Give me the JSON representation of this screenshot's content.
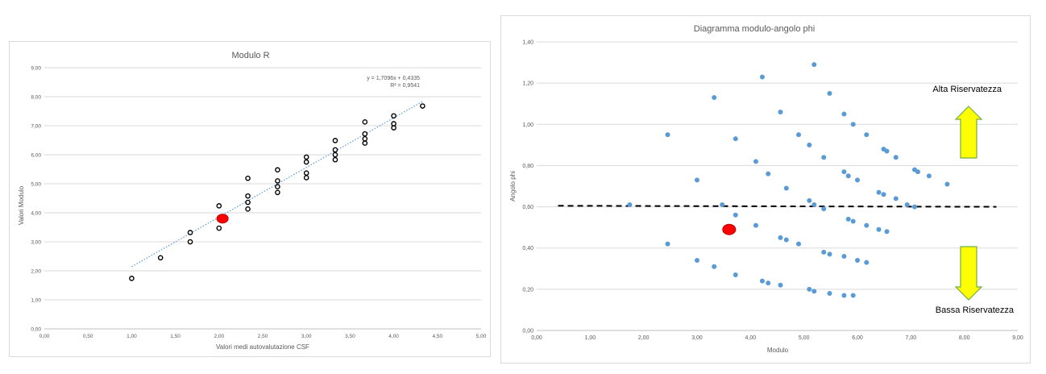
{
  "chart_data": [
    {
      "type": "scatter",
      "title": "Modulo R",
      "xlabel": "Valori medi autovalutazione CSF",
      "ylabel": "Valori Modulo",
      "xlim": [
        0,
        5
      ],
      "ylim": [
        0,
        9
      ],
      "x_ticks": [
        "0,00",
        "0,50",
        "1,00",
        "1,50",
        "2,00",
        "2,50",
        "3,00",
        "3,50",
        "4,00",
        "4,50",
        "5,00"
      ],
      "y_ticks": [
        "0,00",
        "1,00",
        "2,00",
        "3,00",
        "4,00",
        "5,00",
        "6,00",
        "7,00",
        "8,00",
        "9,00"
      ],
      "grid": "horizontal",
      "series": [
        {
          "marker_color": "#000000",
          "points": [
            [
              1.0,
              1.74
            ],
            [
              1.33,
              2.45
            ],
            [
              1.67,
              3.0
            ],
            [
              1.67,
              3.32
            ],
            [
              2.0,
              3.47
            ],
            [
              2.0,
              4.24
            ],
            [
              2.33,
              4.13
            ],
            [
              2.33,
              4.36
            ],
            [
              2.33,
              4.58
            ],
            [
              2.33,
              5.19
            ],
            [
              2.67,
              4.7
            ],
            [
              2.67,
              4.9
            ],
            [
              2.67,
              5.1
            ],
            [
              2.67,
              5.48
            ],
            [
              3.0,
              5.21
            ],
            [
              3.0,
              5.37
            ],
            [
              3.0,
              5.75
            ],
            [
              3.0,
              5.92
            ],
            [
              3.33,
              5.83
            ],
            [
              3.33,
              6.0
            ],
            [
              3.33,
              6.17
            ],
            [
              3.33,
              6.49
            ],
            [
              3.67,
              6.4
            ],
            [
              3.67,
              6.55
            ],
            [
              3.67,
              6.72
            ],
            [
              3.67,
              7.13
            ],
            [
              4.0,
              6.93
            ],
            [
              4.0,
              7.07
            ],
            [
              4.0,
              7.34
            ],
            [
              4.33,
              7.68
            ]
          ]
        }
      ],
      "highlight": {
        "point": [
          2.04,
          3.8
        ],
        "color": "#ff0000"
      },
      "trendline": {
        "equation": "y = 1,7096x + 0,4335",
        "r2": "R² = 0,9541",
        "slope": 1.7096,
        "intercept": 0.4335,
        "x_range": [
          1.0,
          4.33
        ],
        "color": "#5b9bd5"
      }
    },
    {
      "type": "scatter",
      "title": "Diagramma modulo-angolo phi",
      "xlabel": "Modulo",
      "ylabel": "Angolo phi",
      "xlim": [
        0,
        9
      ],
      "ylim": [
        0,
        1.4
      ],
      "x_ticks": [
        "0,00",
        "1,00",
        "2,00",
        "3,00",
        "4,00",
        "5,00",
        "6,00",
        "7,00",
        "8,00",
        "9,00"
      ],
      "y_ticks": [
        "0,00",
        "0,20",
        "0,40",
        "0,60",
        "0,80",
        "1,00",
        "1,20",
        "1,40"
      ],
      "grid": "horizontal",
      "series": [
        {
          "marker_color": "#5b9bd5",
          "points": [
            [
              1.74,
              0.61
            ],
            [
              2.45,
              0.95
            ],
            [
              2.45,
              0.42
            ],
            [
              3.0,
              0.73
            ],
            [
              3.0,
              0.34
            ],
            [
              3.32,
              1.13
            ],
            [
              3.32,
              0.31
            ],
            [
              3.47,
              0.61
            ],
            [
              3.72,
              0.93
            ],
            [
              3.72,
              0.56
            ],
            [
              3.72,
              0.27
            ],
            [
              4.1,
              0.82
            ],
            [
              4.1,
              0.51
            ],
            [
              4.22,
              1.23
            ],
            [
              4.22,
              0.24
            ],
            [
              4.33,
              0.76
            ],
            [
              4.33,
              0.23
            ],
            [
              4.56,
              1.06
            ],
            [
              4.56,
              0.45
            ],
            [
              4.67,
              0.69
            ],
            [
              4.67,
              0.44
            ],
            [
              4.56,
              0.22
            ],
            [
              4.9,
              0.95
            ],
            [
              4.9,
              0.42
            ],
            [
              5.1,
              0.9
            ],
            [
              5.1,
              0.63
            ],
            [
              5.1,
              0.2
            ],
            [
              5.19,
              1.29
            ],
            [
              5.19,
              0.61
            ],
            [
              5.19,
              0.19
            ],
            [
              5.37,
              0.84
            ],
            [
              5.37,
              0.59
            ],
            [
              5.37,
              0.38
            ],
            [
              5.48,
              1.15
            ],
            [
              5.48,
              0.37
            ],
            [
              5.48,
              0.18
            ],
            [
              5.75,
              1.05
            ],
            [
              5.75,
              0.77
            ],
            [
              5.75,
              0.36
            ],
            [
              5.75,
              0.17
            ],
            [
              5.83,
              0.75
            ],
            [
              5.83,
              0.54
            ],
            [
              5.92,
              1.0
            ],
            [
              5.92,
              0.53
            ],
            [
              5.92,
              0.17
            ],
            [
              6.0,
              0.73
            ],
            [
              6.0,
              0.34
            ],
            [
              6.17,
              0.95
            ],
            [
              6.17,
              0.51
            ],
            [
              6.17,
              0.33
            ],
            [
              6.4,
              0.67
            ],
            [
              6.4,
              0.49
            ],
            [
              6.49,
              0.88
            ],
            [
              6.49,
              0.66
            ],
            [
              6.55,
              0.87
            ],
            [
              6.55,
              0.48
            ],
            [
              6.72,
              0.84
            ],
            [
              6.72,
              0.64
            ],
            [
              6.93,
              0.61
            ],
            [
              7.07,
              0.78
            ],
            [
              7.07,
              0.6
            ],
            [
              7.13,
              0.77
            ],
            [
              7.34,
              0.75
            ],
            [
              7.68,
              0.71
            ]
          ]
        }
      ],
      "highlight": {
        "point": [
          3.6,
          0.49
        ],
        "color": "#ff0000"
      },
      "threshold_line": {
        "y": 0.6,
        "x_range": [
          0.4,
          8.6
        ],
        "color": "#000000"
      },
      "annotations": {
        "top": "Alta Riservatezza",
        "bottom": "Bassa Riservatezza",
        "arrow_color": "#ffff00",
        "arrow_border": "#70ad47"
      }
    }
  ]
}
